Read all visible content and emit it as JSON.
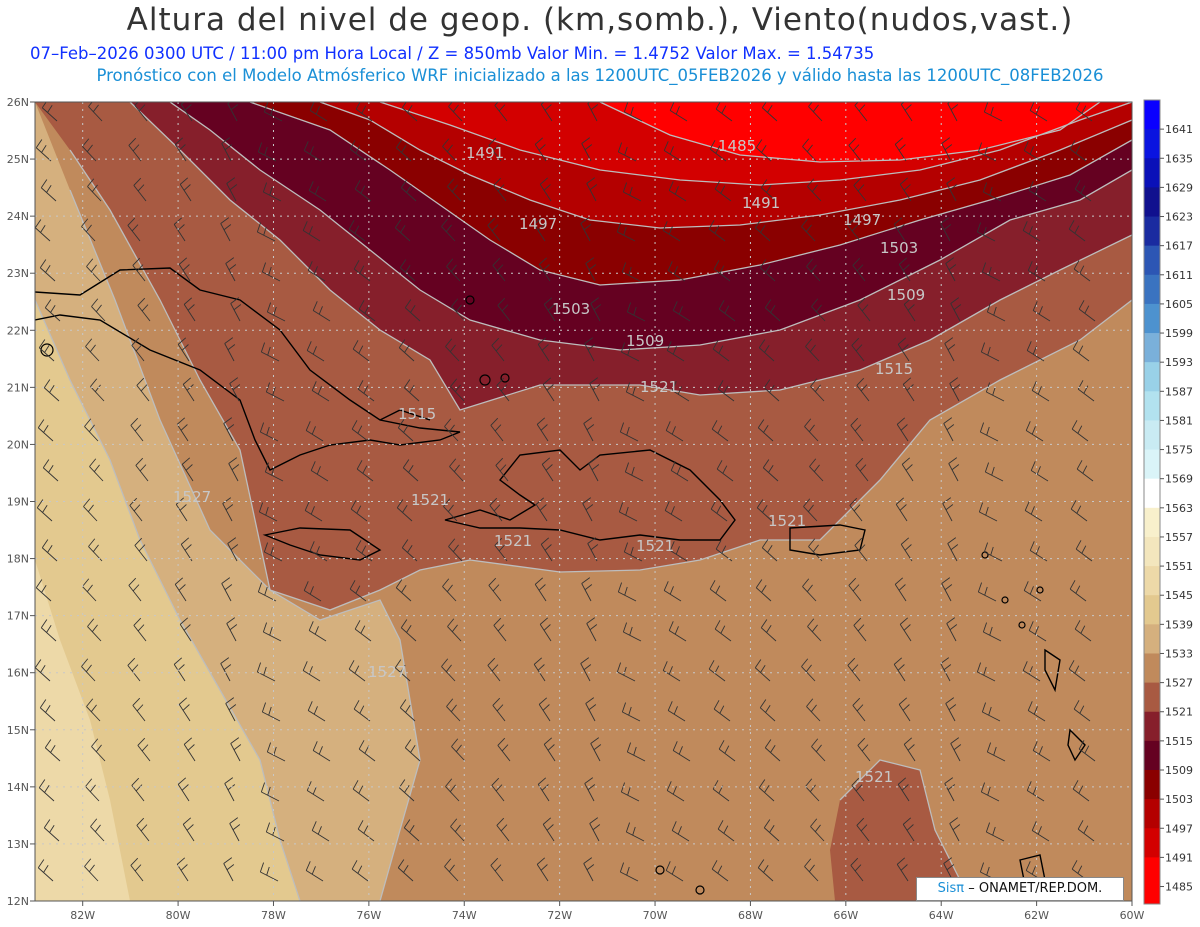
{
  "title": "Altura del nivel de geop. (km,somb.), Viento(nudos,vast.)",
  "subtitle": "07–Feb–2026  0300 UTC / 11:00 pm Hora Local / Z = 850mb     Valor Min. = 1.4752   Valor Max. = 1.54735",
  "subtitle2": "Pronóstico con el Modelo Atmósferico WRF inicializado a las 1200UTC_05FEB2026 y válido hasta las  1200UTC_08FEB2026",
  "credit": {
    "brand": "Sisπ",
    "rest": "– ONAMET/REP.DOM."
  },
  "map": {
    "lon_range": [
      -83,
      -60
    ],
    "lat_range": [
      12,
      26
    ],
    "lon_ticks": [
      "82W",
      "80W",
      "78W",
      "76W",
      "74W",
      "72W",
      "70W",
      "68W",
      "66W",
      "64W",
      "62W",
      "60W"
    ],
    "lat_ticks": [
      "12N",
      "13N",
      "14N",
      "15N",
      "16N",
      "17N",
      "18N",
      "19N",
      "20N",
      "21N",
      "22N",
      "23N",
      "24N",
      "25N",
      "26N"
    ],
    "contour_labels": [
      "1485",
      "1491",
      "1491",
      "1497",
      "1497",
      "1503",
      "1503",
      "1509",
      "1509",
      "1515",
      "1515",
      "1521",
      "1521",
      "1521",
      "1521",
      "1521",
      "1527",
      "1527",
      "1521"
    ]
  },
  "colorbar": {
    "labels": [
      "1641",
      "1635",
      "1629",
      "1623",
      "1617",
      "1611",
      "1605",
      "1599",
      "1593",
      "1587",
      "1581",
      "1575",
      "1569",
      "1563",
      "1557",
      "1551",
      "1545",
      "1539",
      "1533",
      "1527",
      "1521",
      "1515",
      "1509",
      "1503",
      "1497",
      "1491",
      "1485"
    ],
    "colors": [
      "#0a00ff",
      "#0a14e0",
      "#0a10b8",
      "#10108e",
      "#1a2ba0",
      "#2c56b4",
      "#3a73c0",
      "#4d92cf",
      "#7ab0da",
      "#99d1e8",
      "#b2e2ef",
      "#c9ebf3",
      "#daf4f8",
      "#ffffff",
      "#f8f0cc",
      "#f3e6bd",
      "#edd9a8",
      "#e3c98f",
      "#d5b07e",
      "#c08a5c",
      "#a85a42",
      "#861f2b",
      "#650121",
      "#8a0000",
      "#b40000",
      "#d30000",
      "#ff0000"
    ]
  }
}
